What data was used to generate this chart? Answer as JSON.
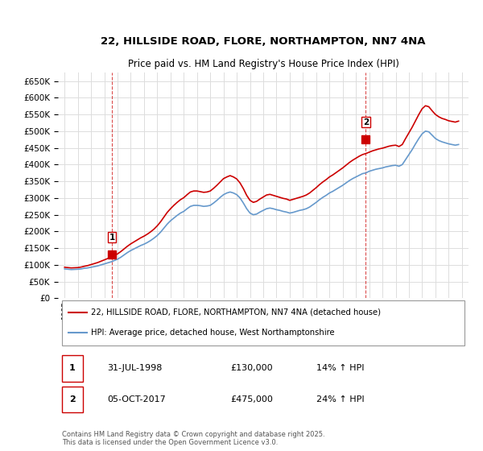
{
  "title": "22, HILLSIDE ROAD, FLORE, NORTHAMPTON, NN7 4NA",
  "subtitle": "Price paid vs. HM Land Registry's House Price Index (HPI)",
  "legend_line1": "22, HILLSIDE ROAD, FLORE, NORTHAMPTON, NN7 4NA (detached house)",
  "legend_line2": "HPI: Average price, detached house, West Northamptonshire",
  "sale1_label": "1",
  "sale1_date": "31-JUL-1998",
  "sale1_price": "£130,000",
  "sale1_hpi": "14% ↑ HPI",
  "sale2_label": "2",
  "sale2_date": "05-OCT-2017",
  "sale2_price": "£475,000",
  "sale2_hpi": "24% ↑ HPI",
  "footer": "Contains HM Land Registry data © Crown copyright and database right 2025.\nThis data is licensed under the Open Government Licence v3.0.",
  "price_color": "#cc0000",
  "hpi_color": "#6699cc",
  "marker_color": "#cc0000",
  "background_color": "#ffffff",
  "grid_color": "#dddddd",
  "ylim": [
    0,
    675000
  ],
  "yticks": [
    0,
    50000,
    100000,
    150000,
    200000,
    250000,
    300000,
    350000,
    400000,
    450000,
    500000,
    550000,
    600000,
    650000
  ],
  "sale1_year": 1998.58,
  "sale1_value": 130000,
  "sale2_year": 2017.75,
  "sale2_value": 475000,
  "hpi_data": {
    "years": [
      1995.0,
      1995.25,
      1995.5,
      1995.75,
      1996.0,
      1996.25,
      1996.5,
      1996.75,
      1997.0,
      1997.25,
      1997.5,
      1997.75,
      1998.0,
      1998.25,
      1998.5,
      1998.75,
      1999.0,
      1999.25,
      1999.5,
      1999.75,
      2000.0,
      2000.25,
      2000.5,
      2000.75,
      2001.0,
      2001.25,
      2001.5,
      2001.75,
      2002.0,
      2002.25,
      2002.5,
      2002.75,
      2003.0,
      2003.25,
      2003.5,
      2003.75,
      2004.0,
      2004.25,
      2004.5,
      2004.75,
      2005.0,
      2005.25,
      2005.5,
      2005.75,
      2006.0,
      2006.25,
      2006.5,
      2006.75,
      2007.0,
      2007.25,
      2007.5,
      2007.75,
      2008.0,
      2008.25,
      2008.5,
      2008.75,
      2009.0,
      2009.25,
      2009.5,
      2009.75,
      2010.0,
      2010.25,
      2010.5,
      2010.75,
      2011.0,
      2011.25,
      2011.5,
      2011.75,
      2012.0,
      2012.25,
      2012.5,
      2012.75,
      2013.0,
      2013.25,
      2013.5,
      2013.75,
      2014.0,
      2014.25,
      2014.5,
      2014.75,
      2015.0,
      2015.25,
      2015.5,
      2015.75,
      2016.0,
      2016.25,
      2016.5,
      2016.75,
      2017.0,
      2017.25,
      2017.5,
      2017.75,
      2018.0,
      2018.25,
      2018.5,
      2018.75,
      2019.0,
      2019.25,
      2019.5,
      2019.75,
      2020.0,
      2020.25,
      2020.5,
      2020.75,
      2021.0,
      2021.25,
      2021.5,
      2021.75,
      2022.0,
      2022.25,
      2022.5,
      2022.75,
      2023.0,
      2023.25,
      2023.5,
      2023.75,
      2024.0,
      2024.25,
      2024.5,
      2024.75
    ],
    "values": [
      88000,
      87000,
      86000,
      86500,
      87000,
      88000,
      90000,
      91000,
      93000,
      95000,
      97000,
      100000,
      103000,
      106000,
      109000,
      113000,
      117000,
      123000,
      130000,
      137000,
      143000,
      148000,
      153000,
      158000,
      162000,
      167000,
      173000,
      180000,
      188000,
      198000,
      210000,
      222000,
      232000,
      240000,
      248000,
      255000,
      260000,
      268000,
      275000,
      278000,
      278000,
      277000,
      275000,
      276000,
      278000,
      285000,
      293000,
      302000,
      310000,
      315000,
      318000,
      315000,
      310000,
      300000,
      285000,
      268000,
      255000,
      250000,
      252000,
      258000,
      263000,
      268000,
      270000,
      268000,
      265000,
      263000,
      260000,
      258000,
      255000,
      257000,
      260000,
      263000,
      265000,
      268000,
      273000,
      280000,
      287000,
      295000,
      302000,
      308000,
      315000,
      320000,
      326000,
      332000,
      338000,
      345000,
      352000,
      358000,
      363000,
      368000,
      373000,
      375000,
      380000,
      383000,
      386000,
      388000,
      390000,
      393000,
      395000,
      397000,
      398000,
      395000,
      400000,
      415000,
      430000,
      445000,
      462000,
      478000,
      492000,
      500000,
      498000,
      488000,
      478000,
      472000,
      468000,
      465000,
      462000,
      460000,
      458000,
      460000
    ]
  },
  "price_data": {
    "years": [
      1995.0,
      1995.25,
      1995.5,
      1995.75,
      1996.0,
      1996.25,
      1996.5,
      1996.75,
      1997.0,
      1997.25,
      1997.5,
      1997.75,
      1998.0,
      1998.25,
      1998.5,
      1998.75,
      1999.0,
      1999.25,
      1999.5,
      1999.75,
      2000.0,
      2000.25,
      2000.5,
      2000.75,
      2001.0,
      2001.25,
      2001.5,
      2001.75,
      2002.0,
      2002.25,
      2002.5,
      2002.75,
      2003.0,
      2003.25,
      2003.5,
      2003.75,
      2004.0,
      2004.25,
      2004.5,
      2004.75,
      2005.0,
      2005.25,
      2005.5,
      2005.75,
      2006.0,
      2006.25,
      2006.5,
      2006.75,
      2007.0,
      2007.25,
      2007.5,
      2007.75,
      2008.0,
      2008.25,
      2008.5,
      2008.75,
      2009.0,
      2009.25,
      2009.5,
      2009.75,
      2010.0,
      2010.25,
      2010.5,
      2010.75,
      2011.0,
      2011.25,
      2011.5,
      2011.75,
      2012.0,
      2012.25,
      2012.5,
      2012.75,
      2013.0,
      2013.25,
      2013.5,
      2013.75,
      2014.0,
      2014.25,
      2014.5,
      2014.75,
      2015.0,
      2015.25,
      2015.5,
      2015.75,
      2016.0,
      2016.25,
      2016.5,
      2016.75,
      2017.0,
      2017.25,
      2017.5,
      2017.75,
      2018.0,
      2018.25,
      2018.5,
      2018.75,
      2019.0,
      2019.25,
      2019.5,
      2019.75,
      2020.0,
      2020.25,
      2020.5,
      2020.75,
      2021.0,
      2021.25,
      2021.5,
      2021.75,
      2022.0,
      2022.25,
      2022.5,
      2022.75,
      2023.0,
      2023.25,
      2023.5,
      2023.75,
      2024.0,
      2024.25,
      2024.5,
      2024.75
    ],
    "values": [
      93000,
      92000,
      91000,
      91500,
      92000,
      93500,
      96000,
      98000,
      101000,
      104000,
      107000,
      111000,
      115000,
      119000,
      123000,
      128000,
      133000,
      140000,
      148000,
      156000,
      163000,
      169000,
      175000,
      181000,
      186000,
      192000,
      199000,
      207000,
      217000,
      229000,
      243000,
      257000,
      268000,
      278000,
      287000,
      295000,
      301000,
      310000,
      318000,
      321000,
      321000,
      319000,
      317000,
      318000,
      321000,
      329000,
      338000,
      348000,
      358000,
      363000,
      367000,
      363000,
      357000,
      345000,
      328000,
      308000,
      293000,
      287000,
      290000,
      297000,
      303000,
      309000,
      311000,
      308000,
      305000,
      302000,
      299000,
      297000,
      293000,
      296000,
      299000,
      302000,
      305000,
      309000,
      315000,
      323000,
      331000,
      340000,
      348000,
      355000,
      363000,
      369000,
      376000,
      383000,
      390000,
      398000,
      406000,
      413000,
      419000,
      425000,
      430000,
      433000,
      437000,
      441000,
      444000,
      447000,
      449000,
      452000,
      455000,
      457000,
      458000,
      454000,
      460000,
      478000,
      495000,
      512000,
      531000,
      550000,
      567000,
      576000,
      573000,
      561000,
      550000,
      543000,
      538000,
      535000,
      531000,
      529000,
      527000,
      530000
    ]
  }
}
